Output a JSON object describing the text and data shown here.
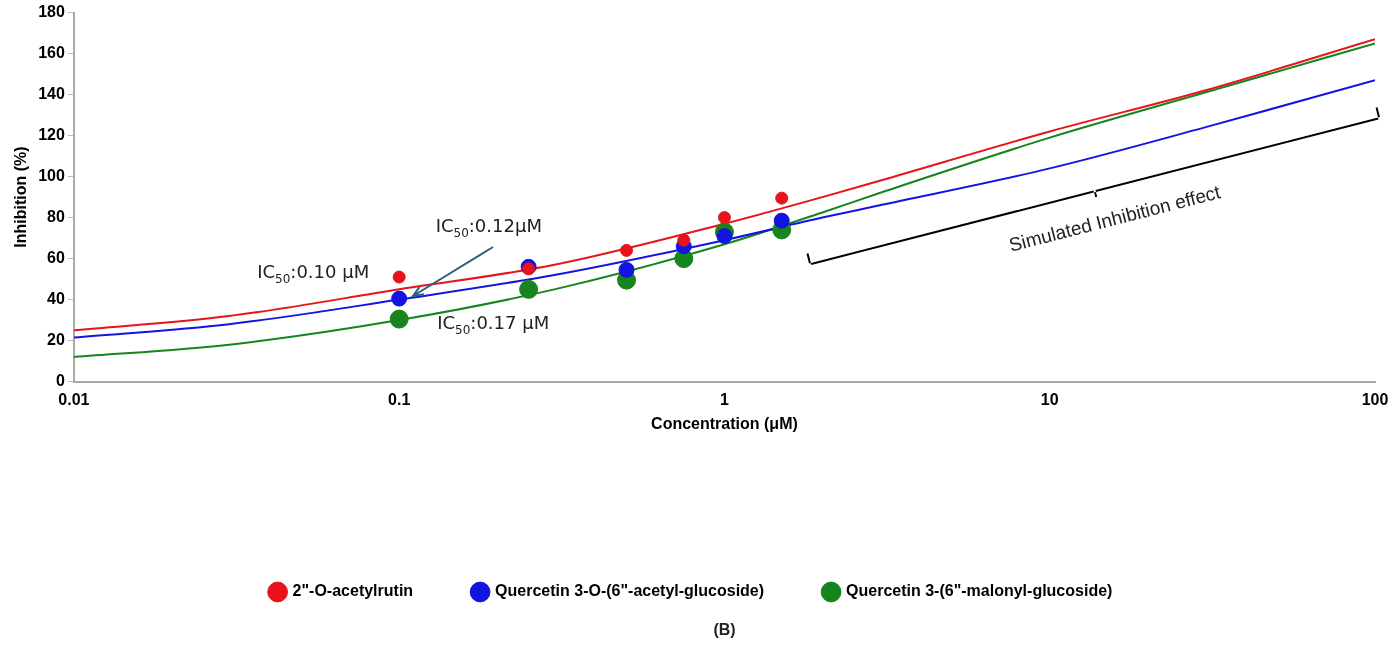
{
  "chart_data": {
    "type": "scatter",
    "xlabel": "Concentration (μM)",
    "ylabel": "Inhibition (%)",
    "series": [
      {
        "name": "2\"-O-acetylrutin",
        "color": "#e8141c",
        "marker": "circle",
        "x": [
          0.1,
          0.25,
          0.5,
          0.75,
          1,
          1.5
        ],
        "values": [
          51,
          55,
          64,
          69,
          80,
          89.5
        ]
      },
      {
        "name": "Quercetin 3-O-(6\"-acetyl-glucoside)",
        "color": "#1414e0",
        "marker": "circle",
        "x": [
          0.1,
          0.25,
          0.5,
          0.75,
          1,
          1.5
        ],
        "values": [
          40.5,
          56,
          54.5,
          66,
          71,
          78.5
        ]
      },
      {
        "name": "Quercetin 3-(6\"-malonyl-glucoside)",
        "color": "#16851e",
        "marker": "circle",
        "x": [
          0.1,
          0.25,
          0.5,
          0.75,
          1,
          1.5
        ],
        "values": [
          30.5,
          45,
          49.5,
          60,
          73,
          74
        ]
      },
      {
        "type": "line",
        "color": "#e8141c",
        "x": [
          0.01,
          0.03,
          0.1,
          0.3,
          1,
          2,
          3,
          10,
          30,
          100
        ],
        "values": [
          25,
          32,
          45,
          57,
          77,
          90,
          98,
          122,
          142,
          167
        ]
      },
      {
        "type": "line",
        "color": "#1414e0",
        "x": [
          0.01,
          0.03,
          0.1,
          0.3,
          1,
          2,
          3,
          10,
          30,
          100
        ],
        "values": [
          21.5,
          28,
          40,
          52,
          69,
          80,
          86,
          104,
          124,
          147
        ]
      },
      {
        "type": "line",
        "color": "#16851e",
        "x": [
          0.01,
          0.03,
          0.1,
          0.3,
          1,
          2,
          3,
          10,
          30,
          100
        ],
        "values": [
          12,
          18,
          30,
          45,
          67,
          82.5,
          92,
          119,
          141,
          165
        ]
      }
    ],
    "xlim": [
      0.01,
      100
    ],
    "xticks": [
      0.01,
      0.1,
      1,
      10,
      100
    ],
    "ylim": [
      0,
      180
    ],
    "yticks": [
      0,
      20,
      40,
      60,
      80,
      100,
      120,
      140,
      160,
      180
    ],
    "log": "x",
    "legend": "bottom",
    "annotations": [
      "IC$_{50}$:0.10 μM",
      {
        "text": "IC$_{50}$:0.12μM",
        "x": 0.11,
        "y": 42
      },
      "IC$_{50}$:0.17 μM",
      "Simulated Inhibition effect",
      "(B)"
    ]
  }
}
